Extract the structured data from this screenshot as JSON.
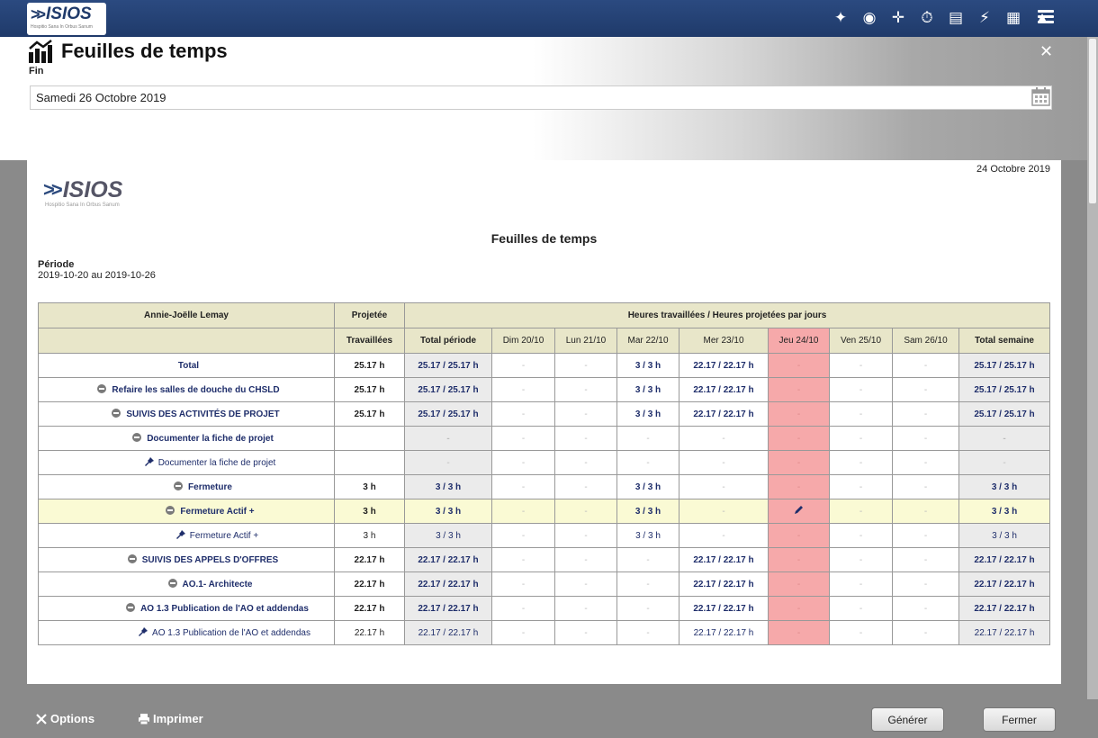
{
  "app": {
    "logo_text": "ISIOS",
    "logo_tagline": "Hospitio Sana In Orbus Sanum",
    "top_icons": [
      "pin-icon",
      "globe-icon",
      "puzzle-icon",
      "stopwatch-icon",
      "document-icon",
      "bolt-icon",
      "calendar-icon",
      "bell-icon",
      "menu-icon"
    ]
  },
  "header": {
    "title": "Feuilles de temps",
    "fin_label": "Fin",
    "fin_value": "Samedi 26 Octobre 2019"
  },
  "report": {
    "date": "24 Octobre 2019",
    "title": "Feuilles de temps",
    "period_label": "Période",
    "period_value": "2019-10-20 au 2019-10-26",
    "employee": "Annie-Joëlle Lemay",
    "col_projected": "Projetée",
    "col_group": "Heures travaillées / Heures projetées par jours",
    "col_worked": "Travaillées",
    "col_total_period": "Total période",
    "days": [
      "Dim 20/10",
      "Lun 21/10",
      "Mar 22/10",
      "Mer 23/10",
      "Jeu 24/10",
      "Ven 25/10",
      "Sam 26/10"
    ],
    "col_total_week": "Total semaine",
    "rows": [
      {
        "label": "Total",
        "worked": "25.17 h",
        "total": "25.17 / 25.17 h",
        "days": [
          "-",
          "-",
          "3 / 3 h",
          "22.17 / 22.17 h",
          "-",
          "-",
          "-"
        ],
        "week": "25.17 / 25.17 h"
      },
      {
        "label": "Refaire les salles de douche du CHSLD",
        "worked": "25.17 h",
        "total": "25.17 / 25.17 h",
        "days": [
          "-",
          "-",
          "3 / 3 h",
          "22.17 / 22.17 h",
          "-",
          "-",
          "-"
        ],
        "week": "25.17 / 25.17 h"
      },
      {
        "label": "SUIVIS DES ACTIVITÉS DE PROJET",
        "worked": "25.17 h",
        "total": "25.17 / 25.17 h",
        "days": [
          "-",
          "-",
          "3 / 3 h",
          "22.17 / 22.17 h",
          "-",
          "-",
          "-"
        ],
        "week": "25.17 / 25.17 h"
      },
      {
        "label": "Documenter la fiche de projet",
        "worked": "",
        "total": "-",
        "days": [
          "-",
          "-",
          "-",
          "-",
          "-",
          "-",
          "-"
        ],
        "week": "-"
      },
      {
        "label": "Documenter la fiche de projet",
        "worked": "",
        "total": "-",
        "days": [
          "-",
          "-",
          "-",
          "-",
          "-",
          "-",
          "-"
        ],
        "week": "-"
      },
      {
        "label": "Fermeture",
        "worked": "3 h",
        "total": "3 / 3 h",
        "days": [
          "-",
          "-",
          "3 / 3 h",
          "-",
          "-",
          "-",
          "-"
        ],
        "week": "3 / 3 h"
      },
      {
        "label": "Fermeture Actif +",
        "worked": "3 h",
        "total": "3 / 3 h",
        "days": [
          "-",
          "-",
          "3 / 3 h",
          "-",
          "",
          "-",
          "-"
        ],
        "week": "3 / 3 h"
      },
      {
        "label": "Fermeture Actif +",
        "worked": "3 h",
        "total": "3 / 3 h",
        "days": [
          "-",
          "-",
          "3 / 3 h",
          "-",
          "-",
          "-",
          "-"
        ],
        "week": "3 / 3 h"
      },
      {
        "label": "SUIVIS DES APPELS D'OFFRES",
        "worked": "22.17 h",
        "total": "22.17 / 22.17 h",
        "days": [
          "-",
          "-",
          "-",
          "22.17 / 22.17 h",
          "-",
          "-",
          "-"
        ],
        "week": "22.17 / 22.17 h"
      },
      {
        "label": "AO.1- Architecte",
        "worked": "22.17 h",
        "total": "22.17 / 22.17 h",
        "days": [
          "-",
          "-",
          "-",
          "22.17 / 22.17 h",
          "-",
          "-",
          "-"
        ],
        "week": "22.17 / 22.17 h"
      },
      {
        "label": "AO 1.3 Publication de l'AO et addendas",
        "worked": "22.17 h",
        "total": "22.17 / 22.17 h",
        "days": [
          "-",
          "-",
          "-",
          "22.17 / 22.17 h",
          "-",
          "-",
          "-"
        ],
        "week": "22.17 / 22.17 h"
      },
      {
        "label": "AO 1.3 Publication de l'AO et addendas",
        "worked": "22.17 h",
        "total": "22.17 / 22.17 h",
        "days": [
          "-",
          "-",
          "-",
          "22.17 / 22.17 h",
          "-",
          "-",
          "-"
        ],
        "week": "22.17 / 22.17 h"
      }
    ]
  },
  "footer": {
    "options_label": "Options",
    "print_label": "Imprimer",
    "generate_label": "Générer",
    "close_label": "Fermer"
  }
}
